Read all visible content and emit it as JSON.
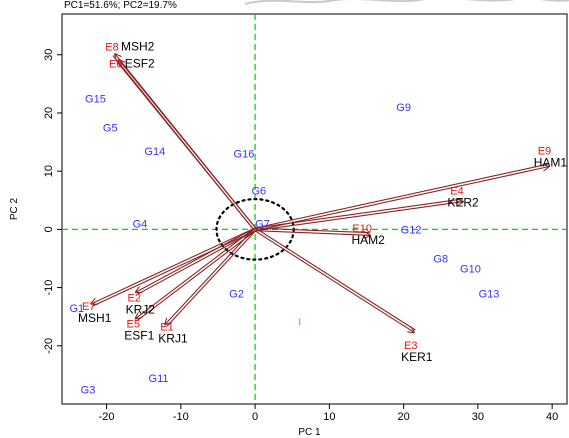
{
  "chart_data": {
    "type": "scatter",
    "subtype": "biplot",
    "title": "PC1=51.6%; PC2=19.7%",
    "xlabel": "PC 1",
    "ylabel": "PC 2",
    "xlim": [
      -26,
      42
    ],
    "ylim": [
      -30,
      37
    ],
    "xticks": [
      -20,
      -10,
      0,
      10,
      20,
      30,
      40
    ],
    "yticks": [
      -20,
      -10,
      0,
      10,
      20,
      30
    ],
    "reference_lines": {
      "x": 0,
      "y": 0,
      "color": "#00dd00",
      "style": "dashed"
    },
    "ellipse": {
      "center": [
        0,
        0
      ],
      "rx": 5.2,
      "ry": 5.2,
      "style": "dotted",
      "color": "#000000"
    },
    "colors": {
      "genotype": "#3333ff",
      "environment_code": "#ee1111",
      "environment_name": "#000000",
      "vector": "#8b2323",
      "axis": "#000000"
    },
    "genotypes": [
      {
        "label": "G1",
        "x": -24,
        "y": -13.5
      },
      {
        "label": "G2",
        "x": -2.5,
        "y": -11
      },
      {
        "label": "G3",
        "x": -22.5,
        "y": -27.5
      },
      {
        "label": "G4",
        "x": -15.5,
        "y": 1
      },
      {
        "label": "G5",
        "x": -19.5,
        "y": 17.5
      },
      {
        "label": "G6",
        "x": 0.5,
        "y": 6.7
      },
      {
        "label": "G7",
        "x": 1,
        "y": 1
      },
      {
        "label": "G8",
        "x": 25,
        "y": -5
      },
      {
        "label": "G9",
        "x": 20,
        "y": 21
      },
      {
        "label": "G10",
        "x": 29,
        "y": -6.7
      },
      {
        "label": "G11",
        "x": -13,
        "y": -25.5
      },
      {
        "label": "G12",
        "x": 21,
        "y": 0
      },
      {
        "label": "G13",
        "x": 31.5,
        "y": -11
      },
      {
        "label": "G14",
        "x": -13.5,
        "y": 13.5
      },
      {
        "label": "G15",
        "x": -21.5,
        "y": 22.5
      },
      {
        "label": "G16",
        "x": -1.5,
        "y": 13
      }
    ],
    "environments": [
      {
        "code": "E1",
        "name": "KRJ1",
        "x": -12,
        "y": -16.5
      },
      {
        "code": "E2",
        "name": "KRJ2",
        "x": -16,
        "y": -11
      },
      {
        "code": "E3",
        "name": "KER1",
        "x": 21.5,
        "y": -17.5
      },
      {
        "code": "E4",
        "name": "KER2",
        "x": 28,
        "y": 5
      },
      {
        "code": "E5",
        "name": "ESF1",
        "x": -16,
        "y": -15.5
      },
      {
        "code": "E6",
        "name": "ESF2",
        "x": -18.5,
        "y": 29
      },
      {
        "code": "E7",
        "name": "MSH1",
        "x": -22,
        "y": -13
      },
      {
        "code": "E8",
        "name": "MSH2",
        "x": -19,
        "y": 30
      },
      {
        "code": "E9",
        "name": "HAM1",
        "x": 39.5,
        "y": 11
      },
      {
        "code": "E10",
        "name": "HAM2",
        "x": 15.5,
        "y": -0.8
      }
    ]
  }
}
